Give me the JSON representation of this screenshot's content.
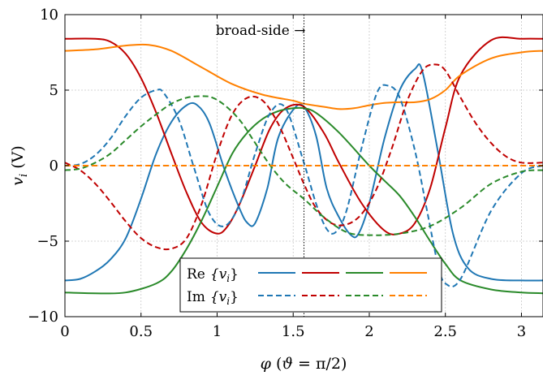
{
  "chart_data": {
    "type": "line",
    "xlabel": "φ (ϑ = π/2)",
    "ylabel": "v_i (V)",
    "xlim": [
      0,
      3.1416
    ],
    "ylim": [
      -10,
      10
    ],
    "xticks": [
      0,
      0.5,
      1,
      1.5,
      2,
      2.5,
      3
    ],
    "xtick_labels": [
      "0",
      "0.5",
      "1",
      "1.5",
      "2",
      "2.5",
      "3"
    ],
    "yticks": [
      -10,
      -5,
      0,
      5,
      10
    ],
    "ytick_labels": [
      "−10",
      "−5",
      "0",
      "5",
      "10"
    ],
    "grid": true,
    "annotation": {
      "text": "broad-side →",
      "x": 1.5708
    },
    "legend": {
      "placement": "bottom-center",
      "rows": [
        {
          "label_main": "Re",
          "label_arg": "{v",
          "label_sub": "i",
          "label_end": "}",
          "dashed": false
        },
        {
          "label_main": "Im",
          "label_arg": "{v",
          "label_sub": "i",
          "label_end": "}",
          "dashed": true
        }
      ]
    },
    "series": [
      {
        "part": "Re",
        "color": "#1f77b4",
        "dashed": false,
        "x": [
          0,
          0.1,
          0.2,
          0.3,
          0.4,
          0.5,
          0.6,
          0.7,
          0.8,
          0.87,
          0.95,
          1.05,
          1.15,
          1.2,
          1.25,
          1.33,
          1.4,
          1.5,
          1.57,
          1.65,
          1.72,
          1.8,
          1.88,
          1.93,
          2.0,
          2.1,
          2.2,
          2.3,
          2.35,
          2.45,
          2.55,
          2.65,
          2.8,
          3.0,
          3.1416
        ],
        "y": [
          -7.6,
          -7.5,
          -7.0,
          -6.2,
          -4.8,
          -2.2,
          0.8,
          2.9,
          4.0,
          4.0,
          2.8,
          -0.3,
          -2.9,
          -3.8,
          -3.8,
          -1.5,
          1.8,
          3.7,
          3.9,
          2.0,
          -1.5,
          -3.4,
          -4.6,
          -4.5,
          -2.5,
          1.8,
          5.0,
          6.4,
          6.2,
          1.0,
          -4.5,
          -6.8,
          -7.5,
          -7.6,
          -7.6
        ]
      },
      {
        "part": "Re",
        "color": "#c00000",
        "dashed": false,
        "x": [
          0,
          0.2,
          0.3,
          0.4,
          0.5,
          0.6,
          0.7,
          0.8,
          0.9,
          1.0,
          1.07,
          1.15,
          1.25,
          1.35,
          1.45,
          1.57,
          1.7,
          1.8,
          1.95,
          2.1,
          2.2,
          2.3,
          2.4,
          2.5,
          2.6,
          2.8,
          3.0,
          3.1416
        ],
        "y": [
          8.4,
          8.4,
          8.2,
          7.4,
          5.8,
          3.5,
          0.8,
          -1.8,
          -3.8,
          -4.5,
          -4.0,
          -2.5,
          0.0,
          2.5,
          3.8,
          3.9,
          2.2,
          0.2,
          -2.5,
          -4.3,
          -4.5,
          -3.8,
          -1.5,
          2.5,
          6.0,
          8.3,
          8.4,
          8.4
        ]
      },
      {
        "part": "Re",
        "color": "#2a8a2a",
        "dashed": false,
        "x": [
          0,
          0.2,
          0.4,
          0.6,
          0.7,
          0.8,
          0.9,
          1.0,
          1.1,
          1.2,
          1.3,
          1.4,
          1.5,
          1.57,
          1.65,
          1.8,
          2.0,
          2.1,
          2.2,
          2.3,
          2.4,
          2.5,
          2.6,
          2.8,
          3.0,
          3.1416
        ],
        "y": [
          -8.4,
          -8.45,
          -8.4,
          -7.8,
          -7.0,
          -5.5,
          -3.6,
          -1.4,
          0.8,
          2.2,
          3.1,
          3.6,
          3.8,
          3.8,
          3.5,
          2.2,
          0.0,
          -1.0,
          -2.0,
          -3.4,
          -5.0,
          -6.5,
          -7.6,
          -8.2,
          -8.4,
          -8.45
        ]
      },
      {
        "part": "Re",
        "color": "#ff8000",
        "dashed": false,
        "x": [
          0,
          0.2,
          0.4,
          0.55,
          0.7,
          0.9,
          1.1,
          1.3,
          1.5,
          1.57,
          1.7,
          1.8,
          1.9,
          2.0,
          2.1,
          2.2,
          2.3,
          2.4,
          2.5,
          2.6,
          2.8,
          3.0,
          3.1416
        ],
        "y": [
          7.6,
          7.7,
          7.95,
          8.0,
          7.6,
          6.5,
          5.4,
          4.7,
          4.3,
          4.1,
          3.9,
          3.75,
          3.8,
          4.0,
          4.15,
          4.2,
          4.2,
          4.4,
          5.0,
          6.0,
          7.1,
          7.5,
          7.6
        ]
      },
      {
        "part": "Im",
        "color": "#1f77b4",
        "dashed": true,
        "x": [
          0,
          0.1,
          0.2,
          0.3,
          0.4,
          0.5,
          0.6,
          0.65,
          0.75,
          0.85,
          0.95,
          1.05,
          1.15,
          1.25,
          1.35,
          1.45,
          1.57,
          1.65,
          1.72,
          1.78,
          1.85,
          1.95,
          2.05,
          2.12,
          2.2,
          2.3,
          2.38,
          2.45,
          2.5,
          2.6,
          2.8,
          3.0,
          3.1416
        ],
        "y": [
          0.0,
          0.1,
          0.7,
          1.8,
          3.3,
          4.5,
          5.0,
          4.8,
          3.0,
          -0.2,
          -3.2,
          -4.0,
          -2.5,
          0.8,
          3.5,
          3.8,
          0.2,
          -2.5,
          -4.2,
          -4.4,
          -3.0,
          1.2,
          4.8,
          5.3,
          4.5,
          1.0,
          -3.0,
          -6.5,
          -7.8,
          -7.5,
          -3.0,
          -0.5,
          0.0
        ]
      },
      {
        "part": "Im",
        "color": "#c00000",
        "dashed": true,
        "x": [
          0,
          0.1,
          0.2,
          0.3,
          0.4,
          0.5,
          0.6,
          0.7,
          0.8,
          0.9,
          1.0,
          1.1,
          1.2,
          1.3,
          1.4,
          1.5,
          1.57,
          1.65,
          1.75,
          1.85,
          1.95,
          2.05,
          2.15,
          2.25,
          2.35,
          2.43,
          2.5,
          2.6,
          2.7,
          2.8,
          2.9,
          3.0,
          3.1416
        ],
        "y": [
          0.2,
          -0.3,
          -1.2,
          -2.4,
          -3.7,
          -4.8,
          -5.4,
          -5.5,
          -4.8,
          -2.5,
          0.8,
          3.4,
          4.5,
          4.3,
          2.8,
          0.5,
          -1.2,
          -2.8,
          -3.8,
          -3.9,
          -3.2,
          -1.5,
          1.2,
          4.3,
          6.3,
          6.7,
          6.3,
          4.5,
          2.8,
          1.5,
          0.6,
          0.2,
          0.2
        ]
      },
      {
        "part": "Im",
        "color": "#2a8a2a",
        "dashed": true,
        "x": [
          0,
          0.1,
          0.2,
          0.3,
          0.4,
          0.5,
          0.6,
          0.7,
          0.8,
          0.9,
          0.97,
          1.05,
          1.15,
          1.25,
          1.35,
          1.45,
          1.57,
          1.7,
          1.85,
          2.0,
          2.2,
          2.4,
          2.6,
          2.8,
          3.0,
          3.1416
        ],
        "y": [
          -0.3,
          -0.2,
          0.2,
          0.8,
          1.7,
          2.6,
          3.4,
          4.1,
          4.5,
          4.6,
          4.5,
          4.0,
          3.0,
          1.5,
          0.0,
          -1.2,
          -2.2,
          -3.4,
          -4.4,
          -4.6,
          -4.5,
          -4.0,
          -2.8,
          -1.2,
          -0.4,
          -0.3
        ]
      },
      {
        "part": "Im",
        "color": "#ff8000",
        "dashed": true,
        "x": [
          0,
          3.1416
        ],
        "y": [
          0,
          0
        ]
      }
    ]
  }
}
